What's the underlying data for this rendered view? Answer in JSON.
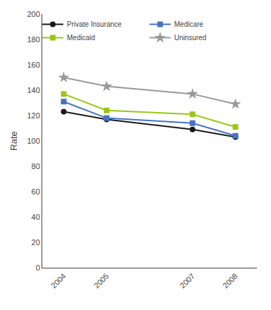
{
  "chart_data": {
    "type": "line",
    "x": [
      2004,
      2005,
      2007,
      2008
    ],
    "xlim": [
      2003.5,
      2008.5
    ],
    "xticks": [
      2004,
      2005,
      2007,
      2008
    ],
    "ylim": [
      0,
      200
    ],
    "yticks": [
      0,
      20,
      40,
      60,
      80,
      100,
      120,
      140,
      160,
      180,
      200
    ],
    "y_label": "Rate",
    "grid": false,
    "legend": "upper right",
    "series": [
      {
        "name": "Private Insurance",
        "color": "#1a1a1a",
        "marker": "circle",
        "values": [
          123,
          117,
          109,
          103
        ]
      },
      {
        "name": "Medicare",
        "color": "#4472c4",
        "marker": "square",
        "values": [
          131,
          118,
          114,
          104
        ]
      },
      {
        "name": "Medicaid",
        "color": "#9dc41a",
        "marker": "square",
        "values": [
          137,
          124,
          121,
          111
        ]
      },
      {
        "name": "Uninsured",
        "color": "#999999",
        "marker": "star",
        "values": [
          150,
          143,
          137,
          129
        ]
      }
    ]
  }
}
